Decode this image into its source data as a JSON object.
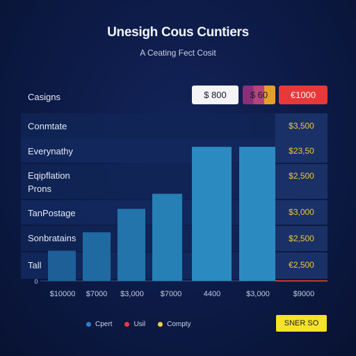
{
  "header": {
    "title": "Unesigh Cous Cuntiers",
    "subtitle": "A Ceating Fect Cosit"
  },
  "top_legend": [
    {
      "label": "$ 800",
      "color": "#f4f4f6"
    },
    {
      "label": "$ 60",
      "color": "#b5447b"
    },
    {
      "label": "€1000",
      "color": "#e8383a"
    }
  ],
  "chart_data": {
    "type": "bar",
    "title": "Unesigh Cous Cuntiers",
    "subtitle": "A Ceating Fect Cosit",
    "column_header": "Casigns",
    "y_zero_label": "0",
    "categories": [
      "$10000",
      "$7000",
      "$3,000",
      "$7000",
      "4400",
      "$3,000",
      "$9000"
    ],
    "values": [
      0.18,
      0.29,
      0.43,
      0.52,
      0.8,
      0.8,
      0
    ],
    "ylim": [
      0,
      1
    ],
    "bar_colors": [
      "#1d5f96",
      "#1f6ba1",
      "#2274aa",
      "#2680b5",
      "#2b8ac0"
    ],
    "grid": false,
    "rows": [
      {
        "label": "Conmtate",
        "value": "$3,500"
      },
      {
        "label": "Everynathy",
        "value": "$23,50"
      },
      {
        "label": "Eqipflation\nProns",
        "value": "$2,500"
      },
      {
        "label": "TanPostage",
        "value": "$3,000"
      },
      {
        "label": "Sonbratains",
        "value": "$2,500"
      },
      {
        "label": "Tall",
        "value": "€2,500"
      }
    ],
    "series_legend": [
      {
        "name": "Cpert",
        "color": "#2f7fd0"
      },
      {
        "name": "Usil",
        "color": "#e43c3c"
      },
      {
        "name": "Compty",
        "color": "#f0d23c"
      }
    ]
  },
  "footer": {
    "button_label": "SNER SO"
  }
}
